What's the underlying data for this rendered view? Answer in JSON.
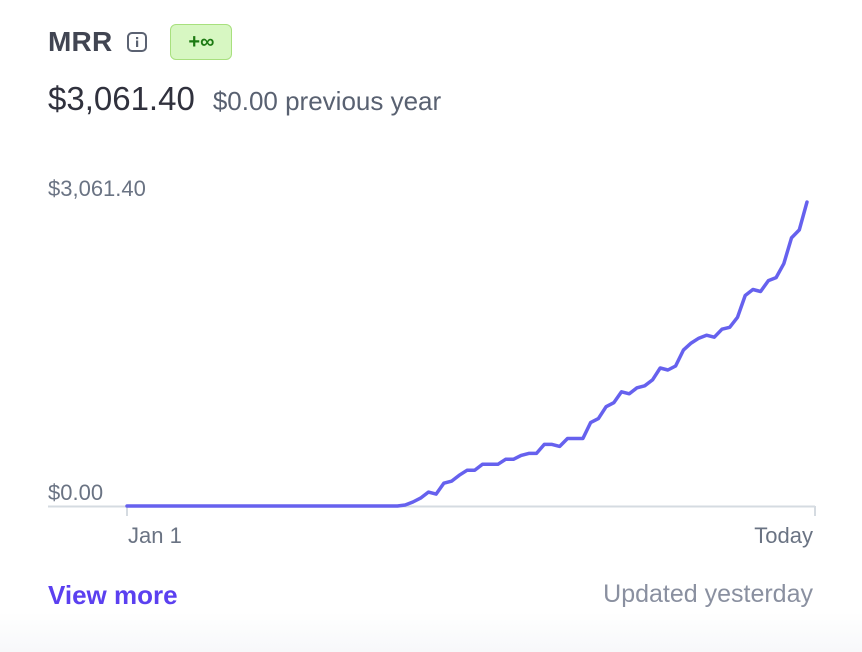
{
  "metric": {
    "title": "MRR",
    "info_icon": "info-icon",
    "change_badge": "+∞",
    "current_value": "$3,061.40",
    "previous_value": "$0.00 previous year"
  },
  "chart_data": {
    "type": "line",
    "y_axis_labels": [
      "$3,061.40",
      "$0.00"
    ],
    "ylim": [
      0,
      3061.4
    ],
    "x_tick_labels": [
      "Jan 1",
      "Today"
    ],
    "grid": false,
    "series": [
      {
        "color": "#6661ee",
        "values": [
          0,
          0,
          0,
          0,
          0,
          0,
          0,
          0,
          0,
          0,
          0,
          0,
          0,
          0,
          0,
          0,
          0,
          0,
          0,
          0,
          0,
          0,
          0,
          0,
          0,
          0,
          0,
          0,
          0,
          0,
          0,
          0,
          0,
          0,
          0,
          0,
          10,
          40,
          80,
          140,
          120,
          230,
          250,
          310,
          360,
          360,
          420,
          420,
          420,
          470,
          470,
          510,
          530,
          530,
          620,
          620,
          600,
          680,
          680,
          680,
          840,
          880,
          1000,
          1040,
          1150,
          1130,
          1190,
          1210,
          1270,
          1390,
          1370,
          1410,
          1570,
          1640,
          1690,
          1720,
          1700,
          1780,
          1800,
          1900,
          2120,
          2180,
          2160,
          2270,
          2300,
          2440,
          2700,
          2780,
          3061.4
        ]
      }
    ],
    "colors": {
      "line": "#6661ee",
      "axis": "#d5dbe1",
      "label": "#6a7383"
    }
  },
  "footer": {
    "view_more": "View more",
    "updated": "Updated yesterday"
  }
}
